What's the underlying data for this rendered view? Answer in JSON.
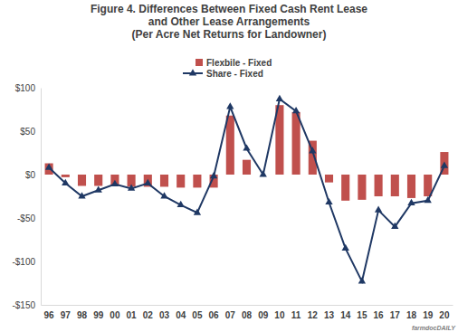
{
  "chart_data": {
    "type": "bar",
    "title": "Figure 4. Differences Between Fixed Cash Rent Lease and Other Lease Arrangements",
    "subtitle": "(Per Acre Net Returns for Landowner)",
    "categories": [
      "96",
      "97",
      "98",
      "99",
      "00",
      "01",
      "02",
      "03",
      "04",
      "05",
      "06",
      "07",
      "08",
      "09",
      "10",
      "11",
      "12",
      "13",
      "14",
      "15",
      "16",
      "17",
      "18",
      "19",
      "20"
    ],
    "series": [
      {
        "name": "Flexbile - Fixed",
        "type": "bar",
        "color": "#c0504d",
        "values": [
          13,
          -3,
          -13,
          -13,
          -13,
          -14,
          -14,
          -14,
          -15,
          -15,
          -15,
          68,
          17,
          0,
          80,
          72,
          39,
          -9,
          -30,
          -29,
          -25,
          -25,
          -27,
          -25,
          26
        ]
      },
      {
        "name": "Share - Fixed",
        "type": "line",
        "color": "#1f3864",
        "marker": "triangle",
        "line_style": "solid",
        "values": [
          8,
          -10,
          -25,
          -18,
          -11,
          -16,
          -10,
          -25,
          -35,
          -44,
          -2,
          78,
          30,
          0,
          87,
          73,
          27,
          -32,
          -85,
          -123,
          -41,
          -60,
          -33,
          -30,
          10
        ]
      }
    ],
    "ylim": [
      -150,
      100
    ],
    "yticks": [
      {
        "value": 100,
        "label": "$100"
      },
      {
        "value": 50,
        "label": "$50"
      },
      {
        "value": 0,
        "label": "$0"
      },
      {
        "value": -50,
        "label": "-$50"
      },
      {
        "value": -100,
        "label": "-$100"
      },
      {
        "value": -150,
        "label": "-$150"
      }
    ],
    "grid": false,
    "legend": "top",
    "annotations": [
      "farmdocDAILY"
    ]
  }
}
